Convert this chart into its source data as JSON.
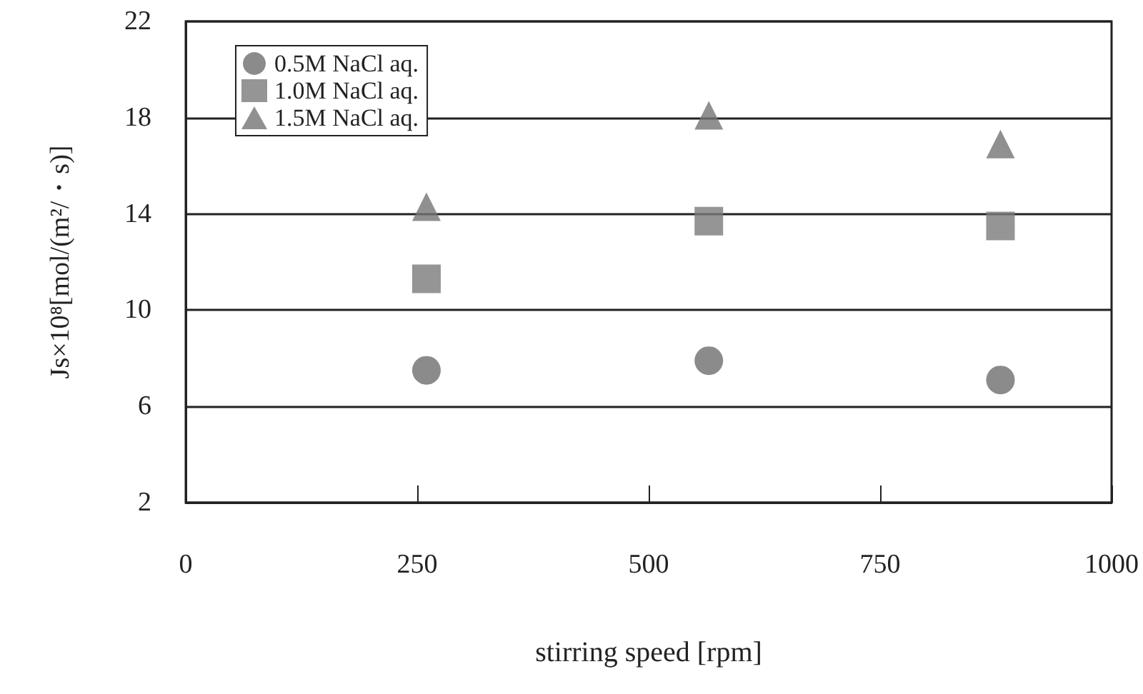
{
  "chart_data": {
    "type": "scatter",
    "xlabel": "stirring speed [rpm]",
    "ylabel": "Js×10⁸[mol/(m²/・s)]",
    "xlim": [
      0,
      1000
    ],
    "xticks": [
      0,
      250,
      500,
      750,
      1000
    ],
    "ylim": [
      2,
      22
    ],
    "yticks": [
      2,
      6,
      10,
      14,
      18,
      22
    ],
    "grid": "y",
    "legend": "top left",
    "series": [
      {
        "name": "0.5M NaCl aq.",
        "color": "#6e6e6e",
        "marker": "circle",
        "x": [
          260,
          565,
          880
        ],
        "values": [
          7.5,
          7.9,
          7.1
        ]
      },
      {
        "name": "1.0M NaCl aq.",
        "color": "#7a7a7a",
        "marker": "square",
        "x": [
          260,
          565,
          880
        ],
        "values": [
          11.3,
          13.7,
          13.5
        ]
      },
      {
        "name": "1.5M NaCl aq.",
        "color": "#747474",
        "marker": "triangle",
        "x": [
          260,
          565,
          880
        ],
        "values": [
          14.3,
          18.1,
          16.9
        ]
      }
    ]
  }
}
